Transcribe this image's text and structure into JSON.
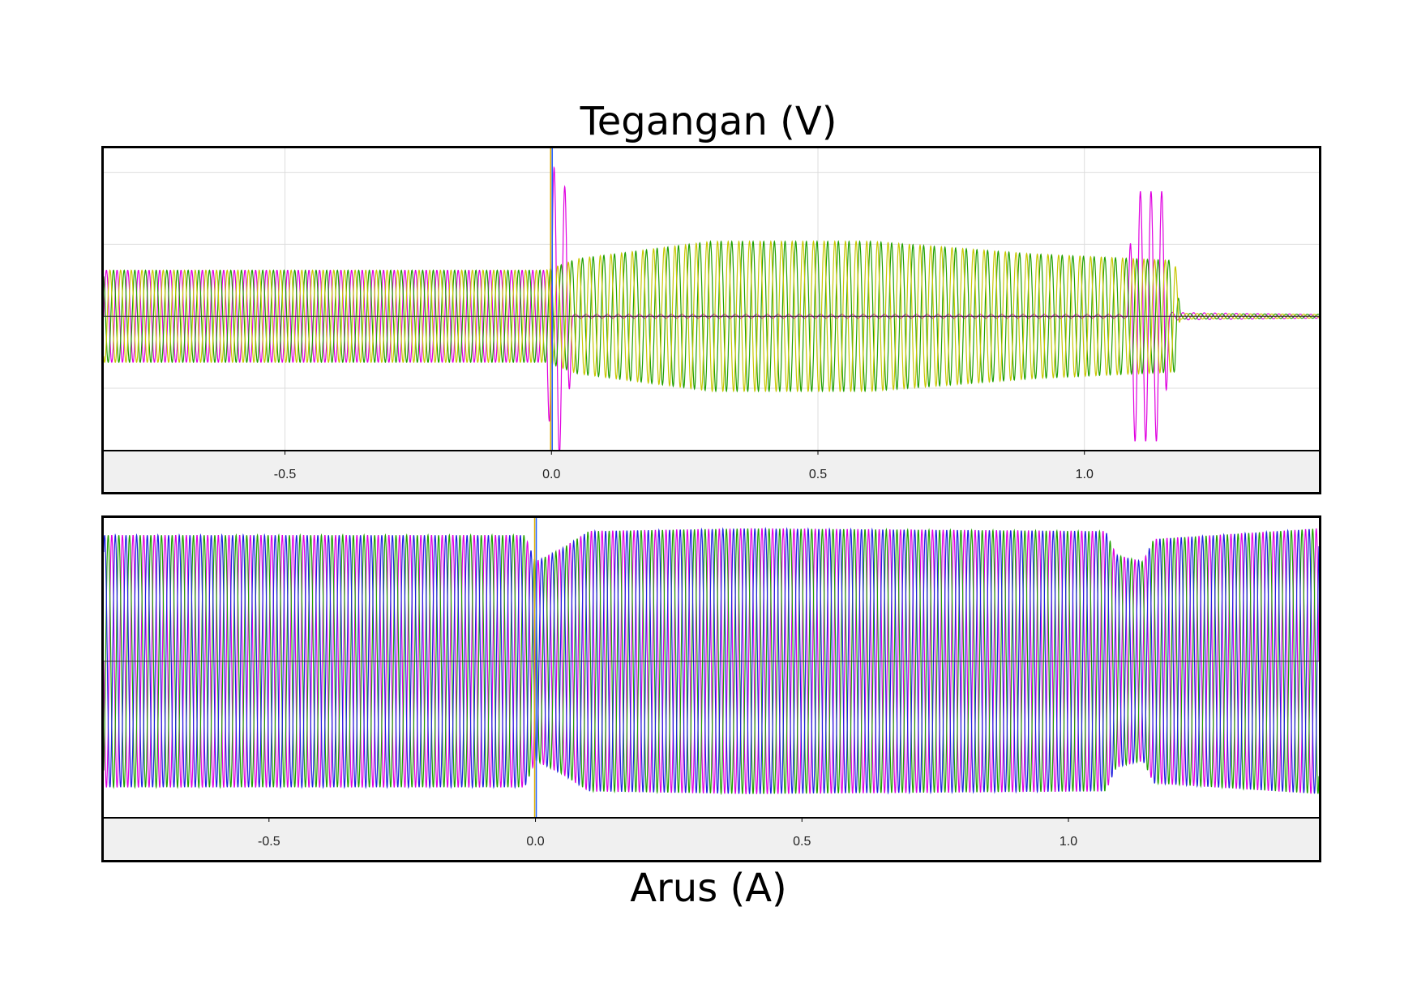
{
  "titles": {
    "top": "Tegangan (V)",
    "bottom": "Arus (A)"
  },
  "colors": {
    "magenta": "#e000e0",
    "green": "#20a000",
    "yellow": "#c8c800",
    "blue": "#2020e0",
    "grid": "#dddddd",
    "cursor_yellow": "#e0b000",
    "cursor_blue": "#2060ff",
    "baseline": "#303030"
  },
  "chart_data": [
    {
      "type": "line",
      "title": "Tegangan (V)",
      "xlabel": "",
      "ylabel": "",
      "xlim": [
        -0.84,
        1.44
      ],
      "ylim": [
        -1.4,
        1.75
      ],
      "x_ticks": [
        -0.5,
        0.0,
        0.5,
        1.0
      ],
      "x_tick_labels": [
        "-0.5",
        "0.0",
        "0.5",
        "1.0"
      ],
      "y_gridlines": [
        -0.75,
        0.75,
        1.5
      ],
      "grid": true,
      "cursor_x": 0.0,
      "series": [
        {
          "color": "#e000e0",
          "envelope": [
            [
              -0.84,
              0.48
            ],
            [
              -0.01,
              0.48
            ],
            [
              0.0,
              1.6
            ],
            [
              0.03,
              1.3
            ],
            [
              0.04,
              0.02
            ],
            [
              1.08,
              0.02
            ],
            [
              1.09,
              1.3
            ],
            [
              1.15,
              1.3
            ],
            [
              1.16,
              0.04
            ],
            [
              1.44,
              0.02
            ]
          ]
        },
        {
          "color": "#20a000",
          "envelope": [
            [
              -0.84,
              0.48
            ],
            [
              -0.01,
              0.48
            ],
            [
              0.05,
              0.6
            ],
            [
              0.3,
              0.78
            ],
            [
              0.6,
              0.78
            ],
            [
              0.9,
              0.65
            ],
            [
              1.17,
              0.58
            ],
            [
              1.18,
              0.03
            ],
            [
              1.44,
              0.02
            ]
          ]
        },
        {
          "color": "#c8c800",
          "envelope": [
            [
              -0.84,
              0.48
            ],
            [
              -0.01,
              0.48
            ],
            [
              0.05,
              0.6
            ],
            [
              0.3,
              0.78
            ],
            [
              0.6,
              0.78
            ],
            [
              0.9,
              0.65
            ],
            [
              1.17,
              0.58
            ],
            [
              1.18,
              0.03
            ],
            [
              1.44,
              0.02
            ]
          ]
        }
      ]
    },
    {
      "type": "line",
      "title": "Arus (A)",
      "xlabel": "",
      "ylabel": "",
      "xlim": [
        -0.81,
        1.47
      ],
      "ylim": [
        -1.18,
        1.08
      ],
      "x_ticks": [
        -0.5,
        0.0,
        0.5,
        1.0
      ],
      "x_tick_labels": [
        "-0.5",
        "0.0",
        "0.5",
        "1.0"
      ],
      "grid": false,
      "cursor_x": 0.0,
      "series": [
        {
          "color": "#e000e0",
          "envelope": [
            [
              -0.81,
              0.95
            ],
            [
              -0.02,
              0.95
            ],
            [
              0.0,
              0.75
            ],
            [
              0.05,
              0.85
            ],
            [
              0.1,
              0.98
            ],
            [
              0.4,
              1.0
            ],
            [
              1.07,
              0.98
            ],
            [
              1.09,
              0.8
            ],
            [
              1.14,
              0.75
            ],
            [
              1.16,
              0.92
            ],
            [
              1.47,
              1.0
            ]
          ]
        },
        {
          "color": "#20a000",
          "envelope": [
            [
              -0.81,
              0.95
            ],
            [
              -0.02,
              0.95
            ],
            [
              0.0,
              0.75
            ],
            [
              0.05,
              0.85
            ],
            [
              0.1,
              0.98
            ],
            [
              0.4,
              1.0
            ],
            [
              1.07,
              0.98
            ],
            [
              1.09,
              0.8
            ],
            [
              1.14,
              0.75
            ],
            [
              1.16,
              0.92
            ],
            [
              1.47,
              1.0
            ]
          ]
        },
        {
          "color": "#2020e0",
          "envelope": [
            [
              -0.81,
              0.95
            ],
            [
              -0.02,
              0.95
            ],
            [
              0.0,
              0.75
            ],
            [
              0.05,
              0.85
            ],
            [
              0.1,
              0.98
            ],
            [
              0.4,
              1.0
            ],
            [
              1.07,
              0.98
            ],
            [
              1.09,
              0.8
            ],
            [
              1.14,
              0.75
            ],
            [
              1.16,
              0.92
            ],
            [
              1.47,
              1.0
            ]
          ]
        }
      ]
    }
  ]
}
